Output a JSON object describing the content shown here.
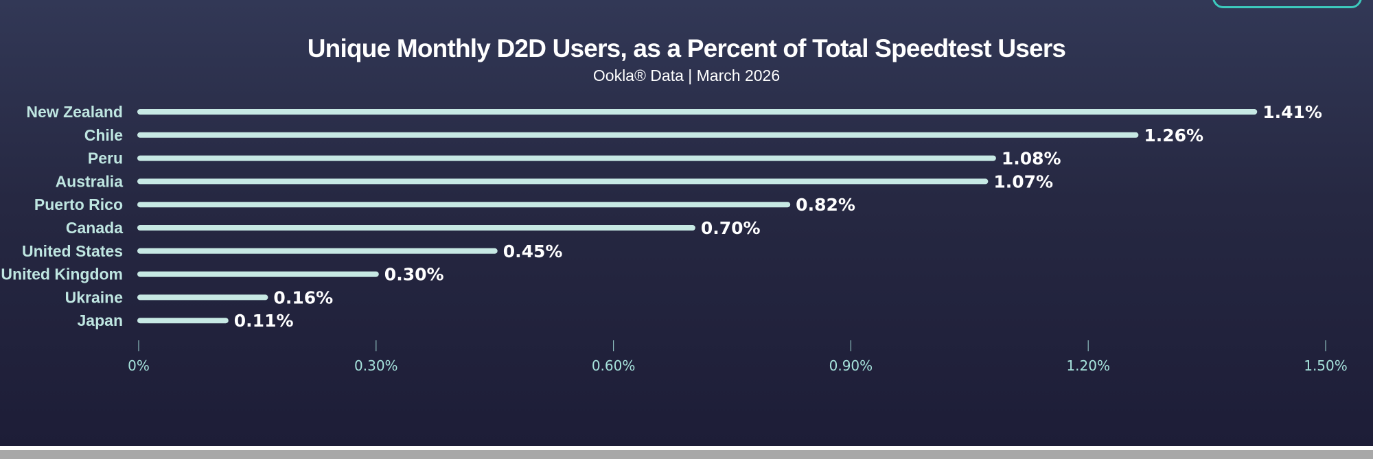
{
  "chart_data": {
    "type": "bar",
    "orientation": "horizontal",
    "title": "Unique Monthly D2D Users, as a Percent of Total Speedtest Users",
    "subtitle": "Ookla® Data | March 2026",
    "categories": [
      "New Zealand",
      "Chile",
      "Peru",
      "Australia",
      "Puerto Rico",
      "Canada",
      "United States",
      "United Kingdom",
      "Ukraine",
      "Japan"
    ],
    "values": [
      1.41,
      1.26,
      1.08,
      1.07,
      0.82,
      0.7,
      0.45,
      0.3,
      0.16,
      0.11
    ],
    "value_labels": [
      "1.41%",
      "1.26%",
      "1.08%",
      "1.07%",
      "0.82%",
      "0.70%",
      "0.45%",
      "0.30%",
      "0.16%",
      "0.11%"
    ],
    "xlim": [
      0,
      1.5
    ],
    "x_ticks": [
      0,
      0.3,
      0.6,
      0.9,
      1.2,
      1.5
    ],
    "x_tick_labels": [
      "0%",
      "0.30%",
      "0.60%",
      "0.90%",
      "1.20%",
      "1.50%"
    ],
    "xlabel": "",
    "ylabel": "",
    "grid": false,
    "legend": "none",
    "colors": {
      "background_top": "#323856",
      "background_bottom": "#1d1d37",
      "bar": "#c7e9e4",
      "category_label": "#bfe6e1",
      "value_label": "#ffffff",
      "tick": "#a6e3dc",
      "accent": "#3cc9bd"
    }
  }
}
